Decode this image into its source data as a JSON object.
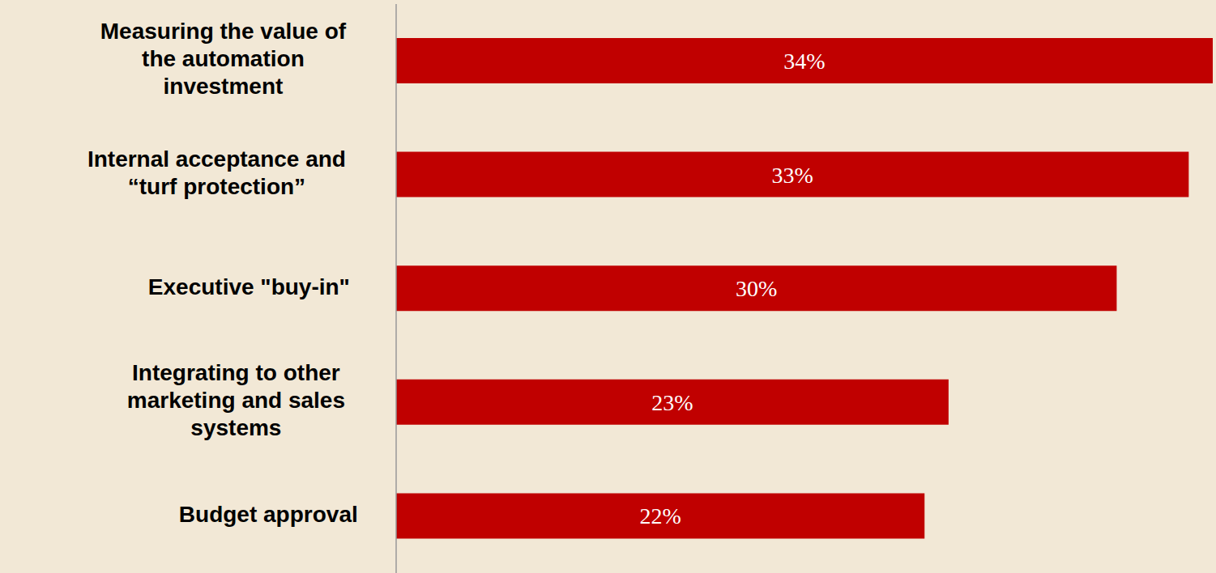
{
  "chart_data": {
    "type": "bar",
    "orientation": "horizontal",
    "categories": [
      "Measuring the value of the automation investment",
      "Internal acceptance and “turf protection”",
      "Executive \"buy-in\"",
      "Integrating to other marketing and sales systems",
      "Budget approval"
    ],
    "values": [
      34,
      33,
      30,
      23,
      22
    ],
    "value_labels": [
      "34%",
      "33%",
      "30%",
      "23%",
      "22%"
    ],
    "data_labels": true,
    "color": "#c00000",
    "xlim": [
      0,
      34
    ],
    "tick_labels": "y",
    "grid": false
  }
}
